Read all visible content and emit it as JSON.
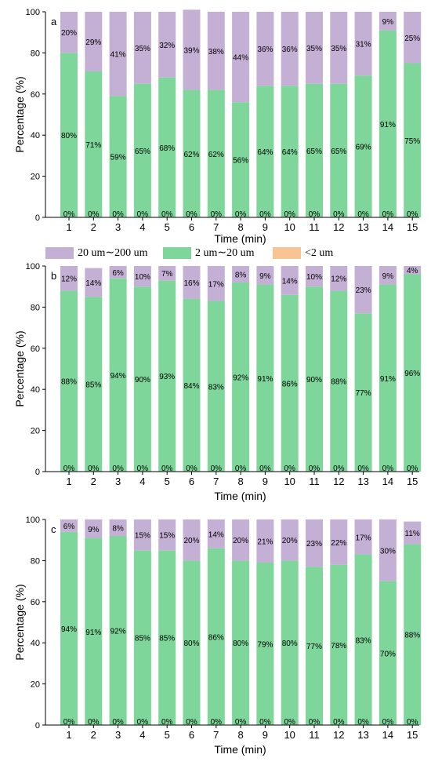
{
  "legend": {
    "items": [
      {
        "label": "20 um∼200 um",
        "color": "#c5b0d5"
      },
      {
        "label": "2 um∼20 um",
        "color": "#7fd69a"
      },
      {
        "label": "<2 um",
        "color": "#f9c493"
      }
    ]
  },
  "colors": {
    "coarse": "#c5b0d5",
    "medium": "#7fd69a",
    "fine": "#f9c493",
    "axis": "#000000"
  },
  "chart_data": [
    {
      "type": "bar",
      "stacked": true,
      "panel_label": "a",
      "categories": [
        "1",
        "2",
        "3",
        "4",
        "5",
        "6",
        "7",
        "8",
        "9",
        "10",
        "11",
        "12",
        "13",
        "14",
        "15"
      ],
      "series": [
        {
          "name": "<2 um",
          "values": [
            0,
            0,
            0,
            0,
            0,
            0,
            0,
            0,
            0,
            0,
            0,
            0,
            0,
            0,
            0
          ],
          "labels": [
            "0%",
            "0%",
            "0%",
            "0%",
            "0%",
            "0%",
            "0%",
            "0%",
            "0%",
            "0%",
            "0%",
            "0%",
            "0%",
            "0%",
            "0%"
          ]
        },
        {
          "name": "2 um∼20 um",
          "values": [
            80,
            71,
            59,
            65,
            68,
            62,
            62,
            56,
            64,
            64,
            65,
            65,
            69,
            91,
            75
          ],
          "labels": [
            "80%",
            "71%",
            "59%",
            "65%",
            "68%",
            "62%",
            "62%",
            "56%",
            "64%",
            "64%",
            "65%",
            "65%",
            "69%",
            "91%",
            "75%"
          ]
        },
        {
          "name": "20 um∼200 um",
          "values": [
            20,
            29,
            41,
            35,
            32,
            39,
            38,
            44,
            36,
            36,
            35,
            35,
            31,
            9,
            25
          ],
          "labels": [
            "20%",
            "29%",
            "41%",
            "35%",
            "32%",
            "39%",
            "38%",
            "44%",
            "36%",
            "36%",
            "35%",
            "35%",
            "31%",
            "9%",
            "25%"
          ]
        }
      ],
      "xlabel": "Time (min)",
      "ylabel": "Percentage (%)",
      "ylim": [
        0,
        100
      ],
      "yticks": [
        "0",
        "20",
        "40",
        "60",
        "80",
        "100"
      ],
      "grid": false
    },
    {
      "type": "bar",
      "stacked": true,
      "panel_label": "b",
      "categories": [
        "1",
        "2",
        "3",
        "4",
        "5",
        "6",
        "7",
        "8",
        "9",
        "10",
        "11",
        "12",
        "13",
        "14",
        "15"
      ],
      "series": [
        {
          "name": "<2 um",
          "values": [
            0,
            0,
            0,
            0,
            0,
            0,
            0,
            0,
            0,
            0,
            0,
            0,
            0,
            0,
            0
          ],
          "labels": [
            "0%",
            "0%",
            "0%",
            "0%",
            "0%",
            "0%",
            "0%",
            "0%",
            "0%",
            "0%",
            "0%",
            "0%",
            "0%",
            "0%",
            "0%"
          ]
        },
        {
          "name": "2 um∼20 um",
          "values": [
            88,
            85,
            94,
            90,
            93,
            84,
            83,
            92,
            91,
            86,
            90,
            88,
            77,
            91,
            96
          ],
          "labels": [
            "88%",
            "85%",
            "94%",
            "90%",
            "93%",
            "84%",
            "83%",
            "92%",
            "91%",
            "86%",
            "90%",
            "88%",
            "77%",
            "91%",
            "96%"
          ]
        },
        {
          "name": "20 um∼200 um",
          "values": [
            12,
            14,
            6,
            10,
            7,
            16,
            17,
            8,
            9,
            14,
            10,
            12,
            23,
            9,
            4
          ],
          "labels": [
            "12%",
            "14%",
            "6%",
            "10%",
            "7%",
            "16%",
            "17%",
            "8%",
            "9%",
            "14%",
            "10%",
            "12%",
            "23%",
            "9%",
            "4%"
          ]
        }
      ],
      "xlabel": "Time (min)",
      "ylabel": "Percentage (%)",
      "ylim": [
        0,
        100
      ],
      "yticks": [
        "0",
        "20",
        "40",
        "60",
        "80",
        "100"
      ],
      "grid": false
    },
    {
      "type": "bar",
      "stacked": true,
      "panel_label": "c",
      "categories": [
        "1",
        "2",
        "3",
        "4",
        "5",
        "6",
        "7",
        "8",
        "9",
        "10",
        "11",
        "12",
        "13",
        "14",
        "15"
      ],
      "series": [
        {
          "name": "<2 um",
          "values": [
            0,
            0,
            0,
            0,
            0,
            0,
            0,
            0,
            0,
            0,
            0,
            0,
            0,
            0,
            0
          ],
          "labels": [
            "0%",
            "0%",
            "0%",
            "0%",
            "0%",
            "0%",
            "0%",
            "0%",
            "0%",
            "0%",
            "0%",
            "0%",
            "0%",
            "0%",
            "0%"
          ]
        },
        {
          "name": "2 um∼20 um",
          "values": [
            94,
            91,
            92,
            85,
            85,
            80,
            86,
            80,
            79,
            80,
            77,
            78,
            83,
            70,
            88
          ],
          "labels": [
            "94%",
            "91%",
            "92%",
            "85%",
            "85%",
            "80%",
            "86%",
            "80%",
            "79%",
            "80%",
            "77%",
            "78%",
            "83%",
            "70%",
            "88%"
          ]
        },
        {
          "name": "20 um∼200 um",
          "values": [
            6,
            9,
            8,
            15,
            15,
            20,
            14,
            20,
            21,
            20,
            23,
            22,
            17,
            30,
            11
          ],
          "labels": [
            "6%",
            "9%",
            "8%",
            "15%",
            "15%",
            "20%",
            "14%",
            "20%",
            "21%",
            "20%",
            "23%",
            "22%",
            "17%",
            "30%",
            "11%"
          ]
        }
      ],
      "xlabel": "Time (min)",
      "ylabel": "Percentage (%)",
      "ylim": [
        0,
        100
      ],
      "yticks": [
        "0",
        "20",
        "40",
        "60",
        "80",
        "100"
      ],
      "grid": false
    }
  ]
}
